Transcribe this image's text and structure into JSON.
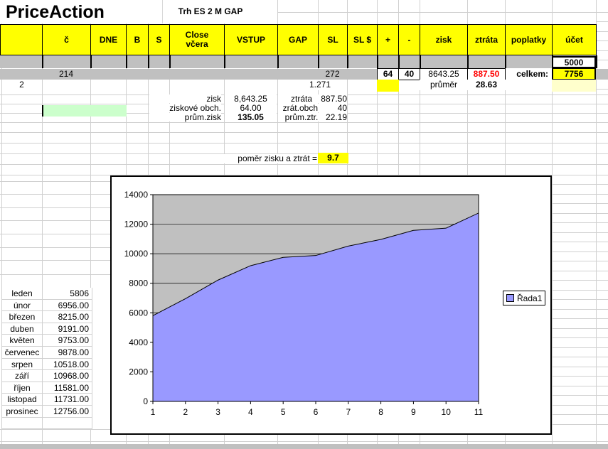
{
  "app": {
    "title": "PriceAction",
    "subtitle": "Trh ES 2 M GAP"
  },
  "colors": {
    "header_yellow": "#FFFF00",
    "row_gray": "#C0C0C0",
    "light_yellow": "#FFFFCC",
    "light_green": "#CCFFCC",
    "series_fill": "#9999FF",
    "loss_red": "#FF0000"
  },
  "header": {
    "columns": [
      "",
      "č",
      "DNE",
      "B",
      "S",
      "Close\nvčera",
      "VSTUP",
      "GAP",
      "SL",
      "SL $",
      "+",
      "-",
      "zisk",
      "ztráta",
      "poplatky",
      "účet"
    ]
  },
  "rows": {
    "start_balance": "5000",
    "totals": {
      "trade_count": "214",
      "sl_value": "272",
      "wins": "64",
      "losses": "40",
      "profit": "8643.25",
      "loss": "887.50",
      "total_label": "celkem:",
      "account_total": "7756"
    },
    "current": {
      "contracts": "2",
      "sl_value": "1.271",
      "average_label": "průměr",
      "average_value": "28.63"
    }
  },
  "stats": {
    "rows": [
      {
        "label": "zisk",
        "value": "8,643.25",
        "label2": "ztráta",
        "value2": "887.50"
      },
      {
        "label": "ziskové obch.",
        "value": "64.00",
        "label2": "zrát.obch.",
        "value2": "40"
      },
      {
        "label": "prům.zisk",
        "value": "135.05",
        "label2": "prům.ztr.",
        "value2": "22.19"
      }
    ],
    "ratio_label": "poměr zisku a ztrát =",
    "ratio_value": "9.7"
  },
  "months": [
    {
      "name": "leden",
      "value": "5806"
    },
    {
      "name": "únor",
      "value": "6956.00"
    },
    {
      "name": "březen",
      "value": "8215.00"
    },
    {
      "name": "duben",
      "value": "9191.00"
    },
    {
      "name": "květen",
      "value": "9753.00"
    },
    {
      "name": "červenec",
      "value": "9878.00"
    },
    {
      "name": "srpen",
      "value": "10518.00"
    },
    {
      "name": "září",
      "value": "10968.00"
    },
    {
      "name": "říjen",
      "value": "11581.00"
    },
    {
      "name": "listopad",
      "value": "11731.00"
    },
    {
      "name": "prosinec",
      "value": "12756.00"
    }
  ],
  "chart_data": {
    "type": "area",
    "x": [
      1,
      2,
      3,
      4,
      5,
      6,
      7,
      8,
      9,
      10,
      11
    ],
    "values": [
      5806,
      6956,
      8215,
      9191,
      9753,
      9878,
      10518,
      10968,
      11581,
      11731,
      12756
    ],
    "legend": [
      "Řada1"
    ],
    "title": "",
    "xlabel": "",
    "ylabel": "",
    "ylim": [
      0,
      14000
    ],
    "ytick_step": 2000,
    "grid": true,
    "legend_position": "right",
    "plot_bg": "#C0C0C0",
    "series_color": "#9999FF"
  }
}
